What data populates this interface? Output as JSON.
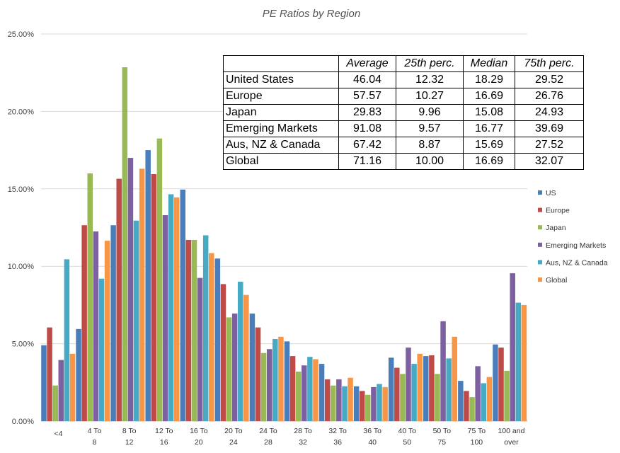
{
  "chart_data": {
    "type": "bar",
    "title": "PE Ratios by Region",
    "xlabel": "",
    "ylabel": "",
    "ylim": [
      0,
      25
    ],
    "y_tick_values": [
      0,
      5,
      10,
      15,
      20,
      25
    ],
    "y_tick_labels": [
      "0.00%",
      "5.00%",
      "10.00%",
      "15.00%",
      "20.00%",
      "25.00%"
    ],
    "grid": true,
    "legend_position": "right",
    "categories": [
      "<4",
      "4 To 8",
      "8 To 12",
      "12 To 16",
      "16 To 20",
      "20 To 24",
      "24 To 28",
      "28 To 32",
      "32 To 36",
      "36 To 40",
      "40 To 50",
      "50 To 75",
      "75 To 100",
      "100 and over"
    ],
    "series": [
      {
        "name": "US",
        "color": "#4A7EBB",
        "values": [
          4.9,
          5.95,
          12.65,
          17.5,
          14.95,
          10.5,
          6.95,
          5.15,
          3.7,
          2.25,
          4.1,
          4.2,
          2.6,
          4.95
        ]
      },
      {
        "name": "Europe",
        "color": "#BE4B48",
        "values": [
          6.05,
          12.65,
          15.65,
          15.95,
          11.7,
          8.85,
          6.05,
          4.2,
          2.7,
          1.95,
          3.45,
          4.25,
          1.95,
          4.75
        ]
      },
      {
        "name": "Japan",
        "color": "#98B954",
        "values": [
          2.3,
          16.0,
          22.85,
          18.25,
          11.7,
          6.7,
          4.4,
          3.2,
          2.3,
          1.7,
          3.05,
          3.05,
          1.55,
          3.25
        ]
      },
      {
        "name": "Emerging Markets",
        "color": "#7D60A0",
        "values": [
          3.95,
          12.25,
          17.0,
          13.3,
          9.25,
          6.95,
          4.65,
          3.6,
          2.7,
          2.2,
          4.75,
          6.45,
          3.55,
          9.55
        ]
      },
      {
        "name": "Aus, NZ & Canada",
        "color": "#46AAC5",
        "values": [
          10.45,
          9.2,
          12.95,
          14.65,
          12.0,
          9.0,
          5.3,
          4.15,
          2.25,
          2.4,
          3.7,
          4.05,
          2.45,
          7.65
        ]
      },
      {
        "name": "Global",
        "color": "#F79646",
        "values": [
          4.35,
          11.65,
          16.3,
          14.45,
          10.85,
          8.15,
          5.45,
          4.0,
          2.8,
          2.2,
          4.35,
          5.45,
          2.85,
          7.5
        ]
      }
    ],
    "table": {
      "headers": [
        "",
        "Average",
        "25th perc.",
        "Median",
        "75th perc."
      ],
      "rows": [
        {
          "region": "United States",
          "average": "46.04",
          "p25": "12.32",
          "median": "18.29",
          "p75": "29.52"
        },
        {
          "region": "Europe",
          "average": "57.57",
          "p25": "10.27",
          "median": "16.69",
          "p75": "26.76"
        },
        {
          "region": "Japan",
          "average": "29.83",
          "p25": "9.96",
          "median": "15.08",
          "p75": "24.93"
        },
        {
          "region": "Emerging Markets",
          "average": "91.08",
          "p25": "9.57",
          "median": "16.77",
          "p75": "39.69"
        },
        {
          "region": "Aus, NZ & Canada",
          "average": "67.42",
          "p25": "8.87",
          "median": "15.69",
          "p75": "27.52"
        },
        {
          "region": "Global",
          "average": "71.16",
          "p25": "10.00",
          "median": "16.69",
          "p75": "32.07"
        }
      ]
    }
  }
}
